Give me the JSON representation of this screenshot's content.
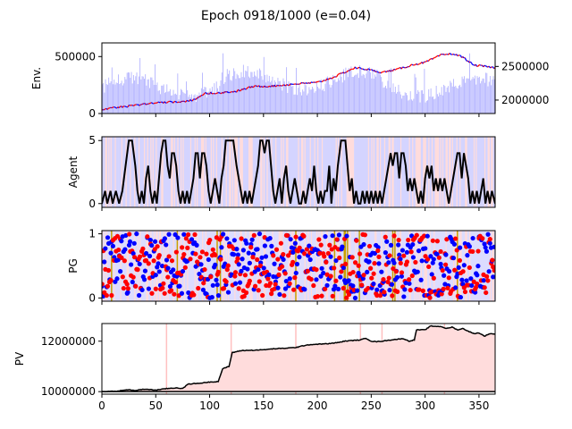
{
  "figure": {
    "title": "Epoch 0918/1000 (e=0.04)"
  },
  "chart_data": [
    {
      "id": "env",
      "type": "bar+line",
      "ylabel": "Env.",
      "xlim": [
        0,
        365
      ],
      "left_axis": {
        "ylim": [
          0,
          620000
        ],
        "ticks": [
          0,
          500000
        ],
        "tick_labels": [
          "0",
          "500000"
        ]
      },
      "right_axis": {
        "ylim": [
          1800000,
          2850000
        ],
        "ticks": [
          2000000,
          2500000
        ],
        "tick_labels": [
          "2000000",
          "2500000"
        ]
      },
      "volume_bar_color": "#b4b4ff",
      "price_up_color": "#ff0000",
      "price_down_color": "#0000ff",
      "price_line_keypoints": [
        [
          0,
          1850000
        ],
        [
          10,
          1880000
        ],
        [
          30,
          1920000
        ],
        [
          50,
          1960000
        ],
        [
          70,
          1970000
        ],
        [
          85,
          2000000
        ],
        [
          95,
          2100000
        ],
        [
          110,
          2110000
        ],
        [
          125,
          2130000
        ],
        [
          140,
          2200000
        ],
        [
          160,
          2210000
        ],
        [
          180,
          2240000
        ],
        [
          200,
          2260000
        ],
        [
          215,
          2340000
        ],
        [
          235,
          2480000
        ],
        [
          245,
          2460000
        ],
        [
          260,
          2410000
        ],
        [
          275,
          2460000
        ],
        [
          290,
          2530000
        ],
        [
          300,
          2560000
        ],
        [
          315,
          2670000
        ],
        [
          325,
          2690000
        ],
        [
          335,
          2640000
        ],
        [
          345,
          2520000
        ],
        [
          365,
          2480000
        ]
      ]
    },
    {
      "id": "agent",
      "type": "line",
      "ylabel": "Agent",
      "xlim": [
        0,
        365
      ],
      "ylim": [
        -0.3,
        5.3
      ],
      "ticks": [
        0,
        5
      ],
      "tick_labels": [
        "0",
        "5"
      ],
      "line_color": "#000000",
      "background_colors": {
        "buy": "#ffdcdc",
        "sell": "#d4d4ff"
      },
      "keypoints": [
        [
          0,
          0
        ],
        [
          3,
          1
        ],
        [
          5,
          0
        ],
        [
          8,
          1
        ],
        [
          10,
          0
        ],
        [
          13,
          1
        ],
        [
          16,
          0
        ],
        [
          19,
          1
        ],
        [
          22,
          3
        ],
        [
          25,
          5
        ],
        [
          28,
          5
        ],
        [
          31,
          3
        ],
        [
          33,
          1
        ],
        [
          35,
          0
        ],
        [
          37,
          1
        ],
        [
          39,
          0
        ],
        [
          41,
          2
        ],
        [
          43,
          3
        ],
        [
          45,
          1
        ],
        [
          47,
          0
        ],
        [
          49,
          1
        ],
        [
          51,
          0
        ],
        [
          53,
          2
        ],
        [
          55,
          4
        ],
        [
          57,
          5
        ],
        [
          59,
          5
        ],
        [
          61,
          3
        ],
        [
          63,
          2
        ],
        [
          65,
          4
        ],
        [
          67,
          4
        ],
        [
          69,
          3
        ],
        [
          71,
          1
        ],
        [
          73,
          0
        ],
        [
          75,
          1
        ],
        [
          77,
          0
        ],
        [
          79,
          1
        ],
        [
          81,
          0
        ],
        [
          83,
          1
        ],
        [
          85,
          2
        ],
        [
          87,
          4
        ],
        [
          89,
          4
        ],
        [
          91,
          2
        ],
        [
          93,
          4
        ],
        [
          95,
          4
        ],
        [
          97,
          3
        ],
        [
          99,
          1
        ],
        [
          101,
          0
        ],
        [
          103,
          1
        ],
        [
          105,
          2
        ],
        [
          107,
          1
        ],
        [
          109,
          0
        ],
        [
          111,
          2
        ],
        [
          113,
          3
        ],
        [
          115,
          5
        ],
        [
          122,
          5
        ],
        [
          125,
          3
        ],
        [
          127,
          2
        ],
        [
          129,
          1
        ],
        [
          131,
          0
        ],
        [
          133,
          1
        ],
        [
          135,
          0
        ],
        [
          137,
          1
        ],
        [
          139,
          0
        ],
        [
          141,
          1
        ],
        [
          143,
          2
        ],
        [
          145,
          3
        ],
        [
          147,
          5
        ],
        [
          149,
          5
        ],
        [
          151,
          4
        ],
        [
          153,
          5
        ],
        [
          155,
          5
        ],
        [
          157,
          3
        ],
        [
          159,
          1
        ],
        [
          161,
          0
        ],
        [
          163,
          1
        ],
        [
          165,
          2
        ],
        [
          167,
          0
        ],
        [
          169,
          2
        ],
        [
          171,
          3
        ],
        [
          173,
          1
        ],
        [
          175,
          0
        ],
        [
          177,
          1
        ],
        [
          179,
          2
        ],
        [
          181,
          1
        ],
        [
          183,
          0
        ],
        [
          185,
          0
        ],
        [
          187,
          1
        ],
        [
          189,
          0
        ],
        [
          191,
          1
        ],
        [
          193,
          2
        ],
        [
          195,
          1
        ],
        [
          197,
          3
        ],
        [
          199,
          1
        ],
        [
          201,
          0
        ],
        [
          203,
          1
        ],
        [
          205,
          0
        ],
        [
          207,
          1
        ],
        [
          209,
          1
        ],
        [
          211,
          3
        ],
        [
          213,
          0
        ],
        [
          215,
          2
        ],
        [
          217,
          1
        ],
        [
          219,
          3
        ],
        [
          222,
          5
        ],
        [
          226,
          5
        ],
        [
          228,
          3
        ],
        [
          230,
          1
        ],
        [
          232,
          2
        ],
        [
          234,
          0
        ],
        [
          236,
          1
        ],
        [
          238,
          0
        ],
        [
          240,
          0
        ],
        [
          242,
          1
        ],
        [
          244,
          0
        ],
        [
          246,
          1
        ],
        [
          248,
          0
        ],
        [
          250,
          1
        ],
        [
          252,
          0
        ],
        [
          254,
          1
        ],
        [
          256,
          0
        ],
        [
          258,
          1
        ],
        [
          260,
          0
        ],
        [
          262,
          1
        ],
        [
          264,
          2
        ],
        [
          266,
          3
        ],
        [
          268,
          4
        ],
        [
          270,
          3
        ],
        [
          272,
          4
        ],
        [
          274,
          4
        ],
        [
          276,
          2
        ],
        [
          278,
          4
        ],
        [
          280,
          4
        ],
        [
          282,
          3
        ],
        [
          284,
          1
        ],
        [
          286,
          2
        ],
        [
          288,
          1
        ],
        [
          290,
          2
        ],
        [
          292,
          1
        ],
        [
          294,
          0
        ],
        [
          296,
          1
        ],
        [
          298,
          0
        ],
        [
          300,
          2
        ],
        [
          302,
          3
        ],
        [
          304,
          2
        ],
        [
          306,
          3
        ],
        [
          308,
          1
        ],
        [
          310,
          2
        ],
        [
          312,
          1
        ],
        [
          314,
          2
        ],
        [
          316,
          1
        ],
        [
          318,
          2
        ],
        [
          320,
          1
        ],
        [
          322,
          0
        ],
        [
          324,
          1
        ],
        [
          326,
          2
        ],
        [
          328,
          3
        ],
        [
          330,
          4
        ],
        [
          332,
          4
        ],
        [
          334,
          2
        ],
        [
          336,
          4
        ],
        [
          338,
          3
        ],
        [
          340,
          2
        ],
        [
          342,
          0
        ],
        [
          344,
          1
        ],
        [
          346,
          0
        ],
        [
          348,
          1
        ],
        [
          350,
          0
        ],
        [
          352,
          1
        ],
        [
          354,
          2
        ],
        [
          356,
          0
        ],
        [
          358,
          1
        ],
        [
          360,
          0
        ],
        [
          362,
          1
        ],
        [
          365,
          0
        ]
      ]
    },
    {
      "id": "pg",
      "type": "scatter",
      "ylabel": "PG",
      "xlim": [
        0,
        365
      ],
      "ylim": [
        -0.05,
        1.05
      ],
      "ticks": [
        0,
        1
      ],
      "tick_labels": [
        "0",
        "1"
      ],
      "colors": {
        "a": "#ff0000",
        "b": "#0000ff",
        "event_line": "#c8a000"
      },
      "event_lines_x": [
        9,
        70,
        107,
        110,
        180,
        216,
        225,
        226,
        228,
        239,
        270,
        272,
        330
      ],
      "points_per_series": 365
    },
    {
      "id": "pv",
      "type": "area",
      "ylabel": "PV",
      "xlim": [
        0,
        365
      ],
      "ylim": [
        9900000,
        12700000
      ],
      "ticks": [
        10000000,
        12000000
      ],
      "tick_labels": [
        "10000000",
        "12000000"
      ],
      "xticks": [
        0,
        50,
        100,
        150,
        200,
        250,
        300,
        350
      ],
      "xtick_labels": [
        "0",
        "50",
        "100",
        "150",
        "200",
        "250",
        "300",
        "350"
      ],
      "fill_color": "#ffdcdc",
      "marker_lines_x": [
        60,
        120,
        180,
        240,
        260,
        318
      ],
      "keypoints": [
        [
          0,
          10000000
        ],
        [
          15,
          10020000
        ],
        [
          25,
          10080000
        ],
        [
          30,
          10040000
        ],
        [
          40,
          10100000
        ],
        [
          50,
          10060000
        ],
        [
          60,
          10120000
        ],
        [
          70,
          10150000
        ],
        [
          75,
          10120000
        ],
        [
          80,
          10300000
        ],
        [
          90,
          10330000
        ],
        [
          100,
          10380000
        ],
        [
          108,
          10400000
        ],
        [
          112,
          10900000
        ],
        [
          118,
          11000000
        ],
        [
          121,
          11550000
        ],
        [
          130,
          11630000
        ],
        [
          140,
          11640000
        ],
        [
          150,
          11660000
        ],
        [
          160,
          11700000
        ],
        [
          170,
          11720000
        ],
        [
          180,
          11750000
        ],
        [
          185,
          11800000
        ],
        [
          190,
          11850000
        ],
        [
          200,
          11880000
        ],
        [
          210,
          11900000
        ],
        [
          220,
          11950000
        ],
        [
          225,
          12000000
        ],
        [
          230,
          12020000
        ],
        [
          240,
          12050000
        ],
        [
          245,
          12120000
        ],
        [
          250,
          12000000
        ],
        [
          255,
          11980000
        ],
        [
          260,
          12000000
        ],
        [
          270,
          12060000
        ],
        [
          280,
          12100000
        ],
        [
          285,
          12000000
        ],
        [
          290,
          12050000
        ],
        [
          292,
          12450000
        ],
        [
          300,
          12450000
        ],
        [
          305,
          12600000
        ],
        [
          315,
          12580000
        ],
        [
          320,
          12500000
        ],
        [
          325,
          12560000
        ],
        [
          330,
          12450000
        ],
        [
          335,
          12500000
        ],
        [
          340,
          12400000
        ],
        [
          345,
          12300000
        ],
        [
          350,
          12330000
        ],
        [
          355,
          12200000
        ],
        [
          360,
          12300000
        ],
        [
          365,
          12280000
        ]
      ]
    }
  ]
}
